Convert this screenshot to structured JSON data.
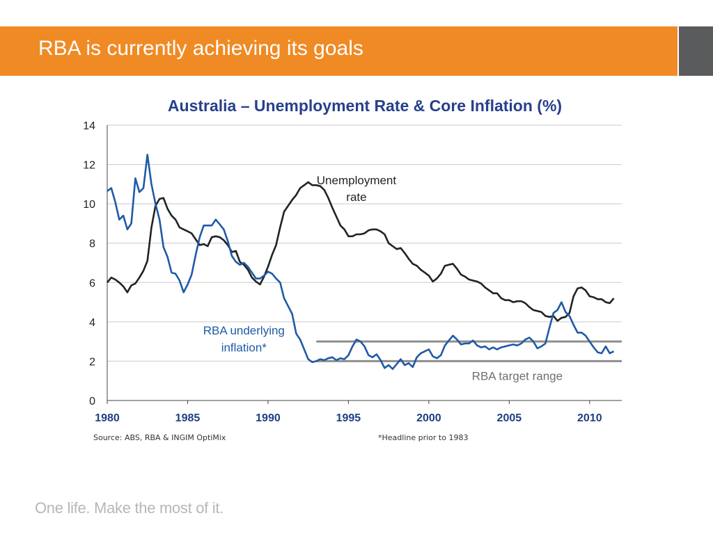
{
  "slide": {
    "title": "RBA is currently achieving its goals",
    "source": "Source: ABS, RBA & INGIM OptiMix",
    "footnote": "*Headline prior to 1983",
    "tagline": "One life. Make the most of it.",
    "accent_color": "#f08a24",
    "side_block_color": "#5a5b5d"
  },
  "chart_data": {
    "type": "line",
    "title": "Australia – Unemployment Rate & Core Inflation (%)",
    "xlabel": "",
    "ylabel": "",
    "xlim": [
      1980,
      2012
    ],
    "ylim": [
      0,
      14
    ],
    "x_ticks": [
      1980,
      1985,
      1990,
      1995,
      2000,
      2005,
      2010
    ],
    "y_ticks": [
      0,
      2,
      4,
      6,
      8,
      10,
      12,
      14
    ],
    "grid": "horizontal",
    "bands": [
      {
        "name": "RBA target range",
        "low": 2,
        "high": 3,
        "from_x": 1993,
        "to_x": 2012,
        "color": "#8e8e8e"
      }
    ],
    "series": [
      {
        "name": "Unemployment rate",
        "color": "#1f2321",
        "x": [
          1980.0,
          1980.25,
          1980.5,
          1980.75,
          1981.0,
          1981.25,
          1981.5,
          1981.75,
          1982.0,
          1982.25,
          1982.5,
          1982.75,
          1983.0,
          1983.25,
          1983.5,
          1983.75,
          1984.0,
          1984.25,
          1984.5,
          1984.75,
          1985.0,
          1985.25,
          1985.5,
          1985.75,
          1986.0,
          1986.25,
          1986.5,
          1986.75,
          1987.0,
          1987.25,
          1987.5,
          1987.75,
          1988.0,
          1988.25,
          1988.5,
          1988.75,
          1989.0,
          1989.25,
          1989.5,
          1989.75,
          1990.0,
          1990.25,
          1990.5,
          1990.75,
          1991.0,
          1991.25,
          1991.5,
          1991.75,
          1992.0,
          1992.25,
          1992.5,
          1992.75,
          1993.0,
          1993.25,
          1993.5,
          1993.75,
          1994.0,
          1994.25,
          1994.5,
          1994.75,
          1995.0,
          1995.25,
          1995.5,
          1995.75,
          1996.0,
          1996.25,
          1996.5,
          1996.75,
          1997.0,
          1997.25,
          1997.5,
          1997.75,
          1998.0,
          1998.25,
          1998.5,
          1998.75,
          1999.0,
          1999.25,
          1999.5,
          1999.75,
          2000.0,
          2000.25,
          2000.5,
          2000.75,
          2001.0,
          2001.25,
          2001.5,
          2001.75,
          2002.0,
          2002.25,
          2002.5,
          2002.75,
          2003.0,
          2003.25,
          2003.5,
          2003.75,
          2004.0,
          2004.25,
          2004.5,
          2004.75,
          2005.0,
          2005.25,
          2005.5,
          2005.75,
          2006.0,
          2006.25,
          2006.5,
          2006.75,
          2007.0,
          2007.25,
          2007.5,
          2007.75,
          2008.0,
          2008.25,
          2008.5,
          2008.75,
          2009.0,
          2009.25,
          2009.5,
          2009.75,
          2010.0,
          2010.25,
          2010.5,
          2010.75,
          2011.0,
          2011.25,
          2011.5
        ],
        "values": [
          6.0,
          6.25,
          6.15,
          6.0,
          5.8,
          5.5,
          5.85,
          5.95,
          6.25,
          6.6,
          7.1,
          8.8,
          9.9,
          10.25,
          10.3,
          9.75,
          9.4,
          9.2,
          8.8,
          8.7,
          8.6,
          8.5,
          8.2,
          7.9,
          7.95,
          7.85,
          8.3,
          8.35,
          8.3,
          8.15,
          7.9,
          7.55,
          7.6,
          7.05,
          6.9,
          6.65,
          6.25,
          6.05,
          5.9,
          6.3,
          6.8,
          7.4,
          7.9,
          8.8,
          9.6,
          9.9,
          10.2,
          10.45,
          10.8,
          10.95,
          11.1,
          10.95,
          10.95,
          10.9,
          10.7,
          10.3,
          9.8,
          9.35,
          8.9,
          8.7,
          8.35,
          8.35,
          8.45,
          8.45,
          8.5,
          8.65,
          8.7,
          8.7,
          8.6,
          8.45,
          8.0,
          7.85,
          7.7,
          7.75,
          7.5,
          7.2,
          6.95,
          6.85,
          6.65,
          6.5,
          6.35,
          6.05,
          6.2,
          6.45,
          6.85,
          6.9,
          6.95,
          6.7,
          6.4,
          6.3,
          6.15,
          6.1,
          6.05,
          5.95,
          5.75,
          5.6,
          5.45,
          5.45,
          5.2,
          5.1,
          5.1,
          5.0,
          5.05,
          5.05,
          4.95,
          4.75,
          4.6,
          4.55,
          4.5,
          4.3,
          4.25,
          4.3,
          4.05,
          4.2,
          4.25,
          4.45,
          5.3,
          5.7,
          5.75,
          5.6,
          5.3,
          5.25,
          5.15,
          5.15,
          5.0,
          4.95,
          5.2
        ]
      },
      {
        "name": "RBA underlying inflation*",
        "color": "#1f5aa6",
        "x": [
          1980.0,
          1980.25,
          1980.5,
          1980.75,
          1981.0,
          1981.25,
          1981.5,
          1981.75,
          1982.0,
          1982.25,
          1982.5,
          1982.75,
          1983.0,
          1983.25,
          1983.5,
          1983.75,
          1984.0,
          1984.25,
          1984.5,
          1984.75,
          1985.0,
          1985.25,
          1985.5,
          1985.75,
          1986.0,
          1986.25,
          1986.5,
          1986.75,
          1987.0,
          1987.25,
          1987.5,
          1987.75,
          1988.0,
          1988.25,
          1988.5,
          1988.75,
          1989.0,
          1989.25,
          1989.5,
          1989.75,
          1990.0,
          1990.25,
          1990.5,
          1990.75,
          1991.0,
          1991.25,
          1991.5,
          1991.75,
          1992.0,
          1992.25,
          1992.5,
          1992.75,
          1993.0,
          1993.25,
          1993.5,
          1993.75,
          1994.0,
          1994.25,
          1994.5,
          1994.75,
          1995.0,
          1995.25,
          1995.5,
          1995.75,
          1996.0,
          1996.25,
          1996.5,
          1996.75,
          1997.0,
          1997.25,
          1997.5,
          1997.75,
          1998.0,
          1998.25,
          1998.5,
          1998.75,
          1999.0,
          1999.25,
          1999.5,
          1999.75,
          2000.0,
          2000.25,
          2000.5,
          2000.75,
          2001.0,
          2001.25,
          2001.5,
          2001.75,
          2002.0,
          2002.25,
          2002.5,
          2002.75,
          2003.0,
          2003.25,
          2003.5,
          2003.75,
          2004.0,
          2004.25,
          2004.5,
          2004.75,
          2005.0,
          2005.25,
          2005.5,
          2005.75,
          2006.0,
          2006.25,
          2006.5,
          2006.75,
          2007.0,
          2007.25,
          2007.5,
          2007.75,
          2008.0,
          2008.25,
          2008.5,
          2008.75,
          2009.0,
          2009.25,
          2009.5,
          2009.75,
          2010.0,
          2010.25,
          2010.5,
          2010.75,
          2011.0,
          2011.25,
          2011.5
        ],
        "values": [
          10.65,
          10.8,
          10.1,
          9.2,
          9.4,
          8.7,
          9.0,
          11.3,
          10.6,
          10.8,
          12.5,
          11.0,
          10.0,
          9.2,
          7.8,
          7.3,
          6.5,
          6.45,
          6.1,
          5.5,
          5.9,
          6.4,
          7.4,
          8.3,
          8.9,
          8.9,
          8.9,
          9.2,
          8.95,
          8.7,
          8.1,
          7.35,
          7.05,
          6.9,
          7.0,
          6.8,
          6.5,
          6.2,
          6.2,
          6.35,
          6.55,
          6.45,
          6.2,
          6.0,
          5.2,
          4.8,
          4.4,
          3.4,
          3.1,
          2.6,
          2.1,
          1.95,
          2.0,
          2.1,
          2.05,
          2.15,
          2.2,
          2.05,
          2.15,
          2.1,
          2.3,
          2.75,
          3.1,
          3.0,
          2.75,
          2.3,
          2.2,
          2.35,
          2.05,
          1.65,
          1.8,
          1.6,
          1.85,
          2.1,
          1.8,
          1.9,
          1.7,
          2.2,
          2.4,
          2.5,
          2.6,
          2.25,
          2.15,
          2.3,
          2.8,
          3.05,
          3.3,
          3.1,
          2.85,
          2.9,
          2.9,
          3.05,
          2.8,
          2.7,
          2.75,
          2.6,
          2.7,
          2.6,
          2.7,
          2.75,
          2.8,
          2.85,
          2.8,
          2.9,
          3.1,
          3.2,
          3.0,
          2.65,
          2.75,
          2.9,
          3.7,
          4.45,
          4.6,
          5.0,
          4.5,
          4.3,
          3.85,
          3.45,
          3.45,
          3.3,
          3.0,
          2.7,
          2.45,
          2.4,
          2.75,
          2.4,
          2.5
        ]
      }
    ],
    "annotations": [
      {
        "text": "Unemployment",
        "x": 1995.5,
        "y": 11.0,
        "color": "#1f2321"
      },
      {
        "text": "rate",
        "x": 1995.5,
        "y": 10.15,
        "color": "#1f2321"
      },
      {
        "text": "RBA underlying",
        "x": 1988.5,
        "y": 3.35,
        "color": "#1f5aa6"
      },
      {
        "text": "inflation*",
        "x": 1988.5,
        "y": 2.5,
        "color": "#1f5aa6"
      },
      {
        "text": "RBA target range",
        "x": 2005.5,
        "y": 1.05,
        "color": "#6f6f6f"
      }
    ]
  }
}
